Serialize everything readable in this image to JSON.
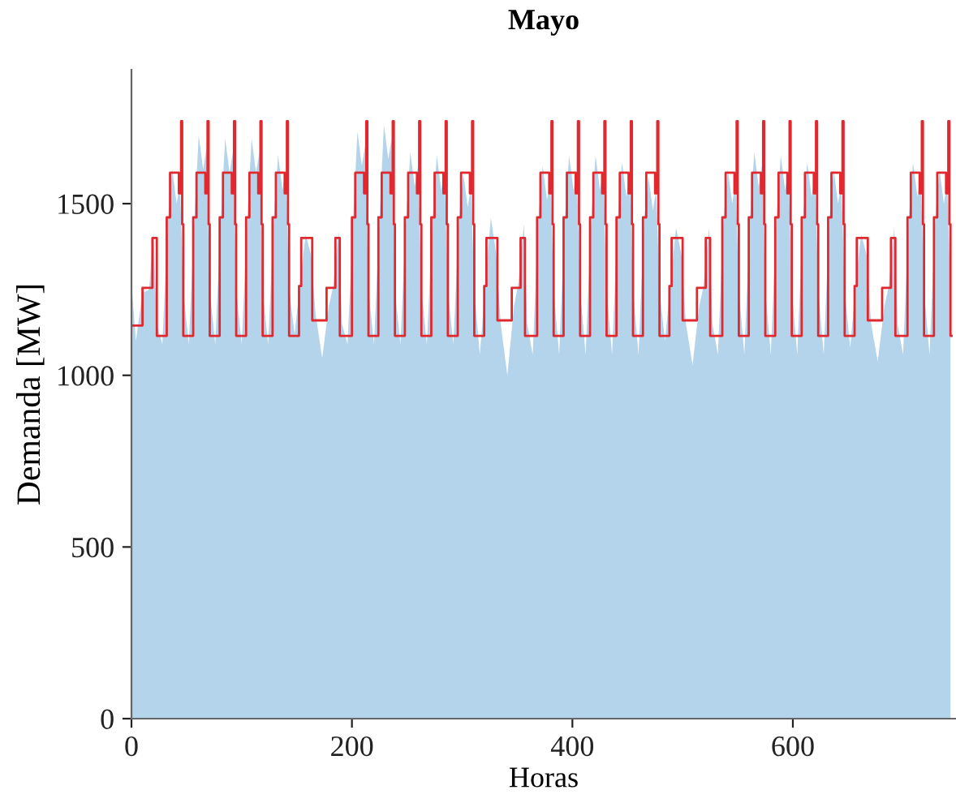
{
  "chart_data": {
    "type": "area",
    "title": "Mayo",
    "xlabel": "Horas",
    "ylabel": "Demanda [MW]",
    "xlim": [
      0,
      748
    ],
    "ylim": [
      0,
      1890
    ],
    "xticks": [
      0,
      200,
      400,
      600
    ],
    "yticks": [
      0,
      500,
      1000,
      1500
    ],
    "grid": false,
    "legend": false,
    "series": [
      {
        "color": "#b3d4ea",
        "x": [
          0,
          4,
          10,
          16,
          20,
          23,
          28,
          33,
          37,
          41,
          44,
          47,
          52,
          57,
          61,
          65,
          68,
          71,
          76,
          81,
          85,
          89,
          92,
          95,
          100,
          105,
          109,
          113,
          116,
          119,
          124,
          129,
          133,
          137,
          140,
          143,
          148,
          154,
          158,
          163,
          167,
          173,
          179,
          183,
          188,
          191,
          196,
          201,
          205,
          209,
          212,
          215,
          220,
          225,
          229,
          233,
          236,
          239,
          244,
          249,
          253,
          257,
          260,
          263,
          268,
          273,
          277,
          281,
          284,
          287,
          292,
          297,
          301,
          305,
          308,
          311,
          316,
          322,
          326,
          331,
          335,
          341,
          347,
          351,
          356,
          359,
          364,
          369,
          373,
          377,
          380,
          383,
          388,
          393,
          397,
          401,
          404,
          407,
          412,
          417,
          421,
          425,
          428,
          431,
          436,
          441,
          445,
          449,
          452,
          455,
          460,
          465,
          469,
          473,
          476,
          479,
          484,
          490,
          494,
          499,
          503,
          509,
          515,
          519,
          524,
          527,
          532,
          537,
          541,
          545,
          548,
          551,
          556,
          561,
          565,
          569,
          572,
          575,
          580,
          585,
          589,
          593,
          596,
          599,
          604,
          609,
          613,
          617,
          620,
          623,
          628,
          633,
          637,
          641,
          644,
          647,
          652,
          658,
          662,
          667,
          671,
          677,
          683,
          687,
          692,
          695,
          700,
          705,
          709,
          713,
          716,
          719,
          724,
          729,
          733,
          737,
          740,
          743
        ],
        "values": [
          1270,
          1100,
          1240,
          1250,
          1420,
          1150,
          1090,
          1450,
          1600,
          1500,
          1560,
          1250,
          1090,
          1450,
          1700,
          1600,
          1660,
          1250,
          1090,
          1450,
          1690,
          1590,
          1650,
          1250,
          1090,
          1450,
          1690,
          1590,
          1650,
          1250,
          1090,
          1450,
          1640,
          1540,
          1600,
          1250,
          1120,
          1300,
          1410,
          1350,
          1180,
          1050,
          1200,
          1260,
          1420,
          1150,
          1090,
          1450,
          1710,
          1610,
          1670,
          1250,
          1090,
          1450,
          1730,
          1630,
          1690,
          1250,
          1090,
          1450,
          1650,
          1550,
          1610,
          1250,
          1090,
          1450,
          1640,
          1540,
          1600,
          1250,
          1090,
          1450,
          1590,
          1490,
          1550,
          1250,
          1060,
          1300,
          1460,
          1350,
          1150,
          1000,
          1200,
          1270,
          1440,
          1150,
          1060,
          1450,
          1610,
          1510,
          1570,
          1250,
          1060,
          1450,
          1640,
          1540,
          1600,
          1250,
          1060,
          1450,
          1640,
          1540,
          1600,
          1250,
          1060,
          1450,
          1620,
          1520,
          1580,
          1250,
          1060,
          1450,
          1580,
          1480,
          1540,
          1250,
          1100,
          1300,
          1430,
          1350,
          1150,
          1030,
          1200,
          1260,
          1430,
          1150,
          1060,
          1450,
          1600,
          1500,
          1560,
          1250,
          1060,
          1450,
          1650,
          1550,
          1610,
          1250,
          1060,
          1450,
          1640,
          1540,
          1600,
          1250,
          1060,
          1450,
          1620,
          1520,
          1580,
          1250,
          1060,
          1450,
          1600,
          1500,
          1560,
          1250,
          1080,
          1300,
          1410,
          1350,
          1150,
          1040,
          1200,
          1260,
          1430,
          1150,
          1060,
          1450,
          1620,
          1520,
          1580,
          1250,
          1060,
          1450,
          1600,
          1500,
          1560,
          1250
        ]
      },
      {
        "type": "step",
        "color": "#e0282e",
        "x": [
          0,
          10,
          19,
          23,
          32,
          35,
          43,
          45,
          46,
          47,
          56,
          59,
          67,
          69,
          70,
          71,
          80,
          83,
          91,
          93,
          94,
          95,
          104,
          107,
          115,
          117,
          118,
          119,
          128,
          131,
          139,
          141,
          142,
          143,
          152,
          154,
          164,
          177,
          185,
          189,
          200,
          203,
          211,
          213,
          214,
          215,
          224,
          227,
          235,
          237,
          238,
          239,
          248,
          251,
          259,
          261,
          262,
          263,
          272,
          275,
          283,
          285,
          286,
          287,
          296,
          299,
          307,
          309,
          310,
          311,
          320,
          322,
          332,
          345,
          353,
          357,
          368,
          371,
          379,
          381,
          382,
          383,
          392,
          395,
          403,
          405,
          406,
          407,
          416,
          419,
          427,
          429,
          430,
          431,
          440,
          443,
          451,
          453,
          454,
          455,
          464,
          467,
          475,
          477,
          478,
          479,
          488,
          490,
          500,
          513,
          521,
          525,
          536,
          539,
          547,
          549,
          550,
          551,
          560,
          563,
          571,
          573,
          574,
          575,
          584,
          587,
          595,
          597,
          598,
          599,
          608,
          611,
          619,
          621,
          622,
          623,
          632,
          635,
          643,
          645,
          646,
          647,
          656,
          658,
          668,
          681,
          689,
          693,
          704,
          707,
          715,
          717,
          718,
          719,
          728,
          731,
          739,
          741,
          742,
          743,
          744
        ],
        "values": [
          1145,
          1255,
          1400,
          1115,
          1460,
          1590,
          1530,
          1740,
          1440,
          1115,
          1460,
          1590,
          1530,
          1740,
          1440,
          1115,
          1460,
          1590,
          1530,
          1740,
          1440,
          1115,
          1460,
          1590,
          1530,
          1740,
          1440,
          1115,
          1460,
          1590,
          1530,
          1740,
          1440,
          1115,
          1260,
          1400,
          1160,
          1255,
          1400,
          1115,
          1460,
          1590,
          1530,
          1740,
          1440,
          1115,
          1460,
          1590,
          1530,
          1740,
          1440,
          1115,
          1460,
          1590,
          1530,
          1740,
          1440,
          1115,
          1460,
          1590,
          1530,
          1740,
          1440,
          1115,
          1460,
          1590,
          1530,
          1740,
          1440,
          1115,
          1260,
          1400,
          1160,
          1255,
          1400,
          1115,
          1460,
          1590,
          1530,
          1740,
          1440,
          1115,
          1460,
          1590,
          1530,
          1740,
          1440,
          1115,
          1460,
          1590,
          1530,
          1740,
          1440,
          1115,
          1460,
          1590,
          1530,
          1740,
          1440,
          1115,
          1460,
          1590,
          1530,
          1740,
          1440,
          1115,
          1260,
          1400,
          1160,
          1255,
          1400,
          1115,
          1460,
          1590,
          1530,
          1740,
          1440,
          1115,
          1460,
          1590,
          1530,
          1740,
          1440,
          1115,
          1460,
          1590,
          1530,
          1740,
          1440,
          1115,
          1460,
          1590,
          1530,
          1740,
          1440,
          1115,
          1460,
          1590,
          1530,
          1740,
          1440,
          1115,
          1260,
          1400,
          1160,
          1255,
          1400,
          1115,
          1460,
          1590,
          1530,
          1740,
          1440,
          1115,
          1460,
          1590,
          1530,
          1740,
          1440,
          1115,
          1115
        ]
      }
    ]
  }
}
